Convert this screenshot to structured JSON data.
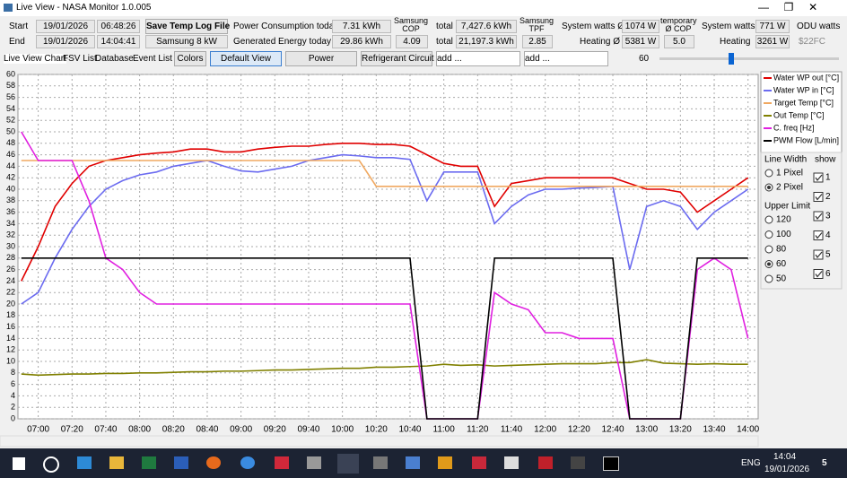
{
  "window": {
    "title": "Live View - NASA Monitor 1.0.005"
  },
  "header": {
    "start_label": "Start",
    "start_date": "19/01/2026",
    "start_time": "06:48:26",
    "end_label": "End",
    "end_date": "19/01/2026",
    "end_time": "14:04:41",
    "save_button": "Save Temp Log File",
    "model": "Samsung 8 kW",
    "power_label": "Power Consumption today",
    "power_value": "7.31 kWh",
    "cop_label": "Samsung COP",
    "cop_value": "4.09",
    "gen_label": "Generated Energy today",
    "gen_value": "29.86 kWh",
    "total1_label": "total",
    "total1_value": "7,427.6 kWh",
    "total2_label": "total",
    "total2_value": "21,197.3 kWh",
    "tpf_label": "Samsung TPF",
    "tpf_value": "2.85",
    "sysavg_label": "System watts Ø",
    "sysavg_value": "1074 W",
    "heatavg_label": "Heating Ø",
    "heatavg_value": "5381 W",
    "tmpcop_label": "temporary Ø COP",
    "tmpcop_value": "5.0",
    "sys_label": "System watts",
    "sys_value": "771 W",
    "heat_label": "Heating",
    "heat_value": "3261 W",
    "odu_label": "ODU watts",
    "odu_value": "$22FC"
  },
  "tabs": [
    "Live View Chart",
    "FSV List",
    "Database",
    "Event List"
  ],
  "toolbar": {
    "colors": "Colors",
    "default_view": "Default View",
    "power": "Power",
    "refrigerant": "Refrigerant Circuit",
    "add1": "add ...",
    "add2": "add ...",
    "slider_value": "60"
  },
  "panel": {
    "line_width": "Line Width",
    "px1": "1 Pixel",
    "px2": "2 Pixel",
    "upper_limit": "Upper Limit",
    "limits": [
      "120",
      "100",
      "80",
      "60",
      "50"
    ],
    "show": "show",
    "shows": [
      "1",
      "2",
      "3",
      "4",
      "5",
      "6"
    ]
  },
  "taskbar": {
    "lang": "ENG",
    "time": "14:04",
    "date": "19/01/2026",
    "notify": "5"
  },
  "chart_data": {
    "type": "line",
    "legend": "right",
    "grid": true,
    "x": [
      "06:50",
      "07:00",
      "07:10",
      "07:20",
      "07:30",
      "07:40",
      "07:50",
      "08:00",
      "08:10",
      "08:20",
      "08:30",
      "08:40",
      "08:50",
      "09:00",
      "09:10",
      "09:20",
      "09:30",
      "09:40",
      "09:50",
      "10:00",
      "10:10",
      "10:20",
      "10:30",
      "10:40",
      "10:50",
      "11:00",
      "11:10",
      "11:20",
      "11:30",
      "11:40",
      "11:50",
      "12:00",
      "12:10",
      "12:20",
      "12:30",
      "12:40",
      "12:50",
      "13:00",
      "13:10",
      "13:20",
      "13:30",
      "13:40",
      "13:50",
      "14:00"
    ],
    "xlim": [
      "06:48",
      "14:06"
    ],
    "xticks": [
      "07:00",
      "07:20",
      "07:40",
      "08:00",
      "08:20",
      "08:40",
      "09:00",
      "09:20",
      "09:40",
      "10:00",
      "10:20",
      "10:40",
      "11:00",
      "11:20",
      "11:40",
      "12:00",
      "12:20",
      "12:40",
      "13:00",
      "13:20",
      "13:40",
      "14:00"
    ],
    "ylim": [
      0,
      60
    ],
    "yticks": [
      0,
      2,
      4,
      6,
      8,
      10,
      12,
      14,
      16,
      18,
      20,
      22,
      24,
      26,
      28,
      30,
      32,
      34,
      36,
      38,
      40,
      42,
      44,
      46,
      48,
      50,
      52,
      54,
      56,
      58,
      60
    ],
    "series": [
      {
        "name": "Water WP out [°C]",
        "color": "#e00000",
        "values": [
          24,
          30,
          37,
          41,
          44,
          45,
          45.5,
          46,
          46.3,
          46.5,
          47,
          47,
          46.5,
          46.5,
          47,
          47.3,
          47.5,
          47.5,
          47.8,
          48,
          48,
          47.8,
          47.8,
          47.5,
          46,
          44.5,
          44,
          44,
          37,
          41,
          41.5,
          42,
          42,
          42,
          42,
          42,
          41,
          40,
          40,
          39.5,
          36,
          38,
          40,
          42
        ]
      },
      {
        "name": "Water WP in [°C]",
        "color": "#6b6bf0",
        "values": [
          20,
          22,
          28,
          33,
          37,
          40,
          41.5,
          42.5,
          43,
          44,
          44.5,
          45,
          44,
          43.2,
          43,
          43.5,
          44,
          45,
          45.5,
          46,
          45.8,
          45.5,
          45.5,
          45.2,
          38,
          43,
          43,
          43,
          34,
          37,
          39,
          40,
          40,
          40.2,
          40.3,
          40.5,
          26,
          37,
          38,
          37,
          33,
          36,
          38,
          40
        ]
      },
      {
        "name": "Target Temp [°C]",
        "color": "#f0a860",
        "values": [
          45,
          45,
          45,
          45,
          45,
          45,
          45,
          45,
          45,
          45,
          45,
          45,
          45,
          45,
          45,
          45,
          45,
          45,
          45,
          45,
          45,
          40.5,
          40.5,
          40.5,
          40.5,
          40.5,
          40.5,
          40.5,
          40.5,
          40.5,
          40.5,
          40.5,
          40.5,
          40.5,
          40.5,
          40.5,
          40.5,
          40.5,
          40.5,
          40.5,
          40.5,
          40.5,
          40.5,
          40.5
        ]
      },
      {
        "name": "Out Temp [°C]",
        "color": "#808000",
        "values": [
          7.8,
          7.6,
          7.7,
          7.8,
          7.8,
          7.9,
          7.9,
          8,
          8,
          8.1,
          8.2,
          8.2,
          8.3,
          8.3,
          8.4,
          8.5,
          8.5,
          8.6,
          8.7,
          8.8,
          8.8,
          9,
          9,
          9.1,
          9.2,
          9.5,
          9.3,
          9.4,
          9.2,
          9.3,
          9.4,
          9.5,
          9.6,
          9.6,
          9.6,
          9.8,
          9.8,
          10.3,
          9.7,
          9.6,
          9.5,
          9.6,
          9.5,
          9.5
        ]
      },
      {
        "name": "C. freq [Hz]",
        "color": "#e020e0",
        "values": [
          50,
          45,
          45,
          45,
          38,
          28,
          26,
          22,
          20,
          20,
          20,
          20,
          20,
          20,
          20,
          20,
          20,
          20,
          20,
          20,
          20,
          20,
          20,
          20,
          0,
          0,
          0,
          0,
          22,
          20,
          19,
          15,
          15,
          14,
          14,
          14,
          0,
          0,
          0,
          0,
          26,
          28,
          26,
          14
        ]
      },
      {
        "name": "PWM Flow [L/min]",
        "color": "#000000",
        "values": [
          28,
          28,
          28,
          28,
          28,
          28,
          28,
          28,
          28,
          28,
          28,
          28,
          28,
          28,
          28,
          28,
          28,
          28,
          28,
          28,
          28,
          28,
          28,
          28,
          0,
          0,
          0,
          0,
          28,
          28,
          28,
          28,
          28,
          28,
          28,
          28,
          0,
          0,
          0,
          0,
          28,
          28,
          28,
          28
        ]
      }
    ]
  }
}
